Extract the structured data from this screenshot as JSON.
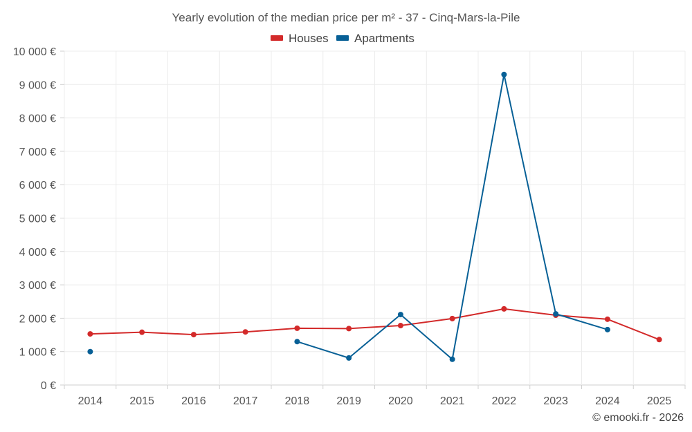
{
  "chart_data": {
    "type": "line",
    "title": "Yearly evolution of the median price per m² - 37 - Cinq-Mars-la-Pile",
    "categories": [
      "2014",
      "2015",
      "2016",
      "2017",
      "2018",
      "2019",
      "2020",
      "2021",
      "2022",
      "2023",
      "2024",
      "2025"
    ],
    "series": [
      {
        "name": "Houses",
        "color": "#d32a2a",
        "values": [
          1530,
          1580,
          1510,
          1590,
          1700,
          1690,
          1780,
          1990,
          2280,
          2090,
          1970,
          1360
        ]
      },
      {
        "name": "Apartments",
        "color": "#076096",
        "values": [
          1000,
          null,
          null,
          null,
          1300,
          810,
          2110,
          770,
          9300,
          2130,
          1660,
          null
        ]
      }
    ],
    "ylim": [
      0,
      10000
    ],
    "yticks": [
      0,
      1000,
      2000,
      3000,
      4000,
      5000,
      6000,
      7000,
      8000,
      9000,
      10000
    ],
    "ytick_labels": [
      "0 €",
      "1 000 €",
      "2 000 €",
      "3 000 €",
      "4 000 €",
      "5 000 €",
      "6 000 €",
      "7 000 €",
      "8 000 €",
      "9 000 €",
      "10 000 €"
    ],
    "xlabel": "",
    "ylabel": "",
    "grid": true,
    "legend_position": "top-center"
  },
  "credit": "© emooki.fr - 2026"
}
